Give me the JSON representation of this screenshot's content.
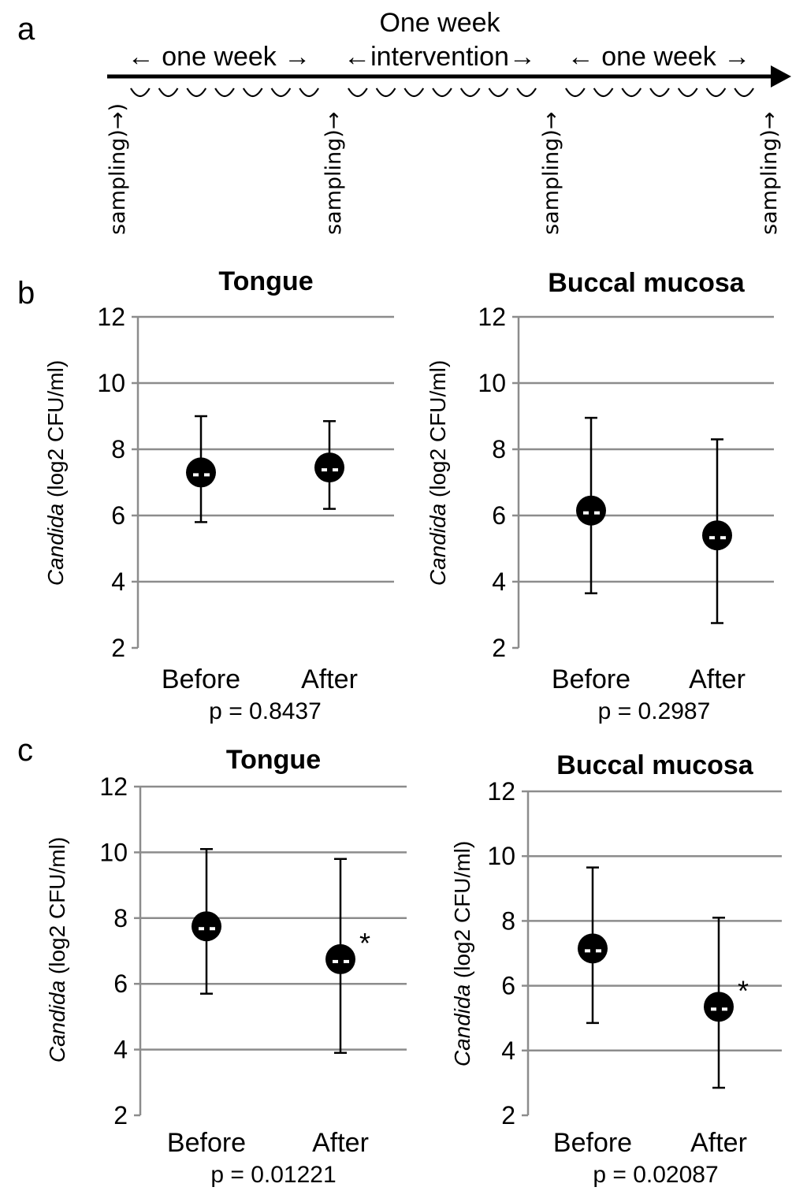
{
  "panels": {
    "a": "a",
    "b": "b",
    "c": "c"
  },
  "timeline": {
    "top_label": "One week",
    "segments": [
      "← one week →",
      "←intervention→",
      "← one week →"
    ],
    "sampling_labels": [
      "sampling)→)",
      "sampling)→",
      "sampling)→",
      "sampling)→"
    ]
  },
  "y_axis_label": {
    "italic": "Candida",
    "rest": " (log2 CFU/ml)"
  },
  "colors": {
    "marker": "#000000",
    "grid": "#8c8c8c",
    "axis": "#8c8c8c"
  },
  "chart_data": [
    {
      "type": "scatter",
      "panel": "b",
      "title": "Tongue",
      "categories": [
        "Before",
        "After"
      ],
      "values": [
        7.3,
        7.45
      ],
      "error_low": [
        5.8,
        6.2
      ],
      "error_high": [
        9.0,
        8.85
      ],
      "ylim": [
        2,
        12
      ],
      "yticks": [
        2,
        4,
        6,
        8,
        10,
        12
      ],
      "ylabel": "Candida (log2 CFU/ml)",
      "pvalue": "p = 0.8437",
      "significance": [
        false,
        false
      ]
    },
    {
      "type": "scatter",
      "panel": "b",
      "title": "Buccal mucosa",
      "categories": [
        "Before",
        "After"
      ],
      "values": [
        6.15,
        5.4
      ],
      "error_low": [
        3.65,
        2.75
      ],
      "error_high": [
        8.95,
        8.3
      ],
      "ylim": [
        2,
        12
      ],
      "yticks": [
        2,
        4,
        6,
        8,
        10,
        12
      ],
      "ylabel": "Candida (log2 CFU/ml)",
      "pvalue": "p = 0.2987",
      "significance": [
        false,
        false
      ]
    },
    {
      "type": "scatter",
      "panel": "c",
      "title": "Tongue",
      "categories": [
        "Before",
        "After"
      ],
      "values": [
        7.75,
        6.75
      ],
      "error_low": [
        5.7,
        3.9
      ],
      "error_high": [
        10.1,
        9.8
      ],
      "ylim": [
        2,
        12
      ],
      "yticks": [
        2,
        4,
        6,
        8,
        10,
        12
      ],
      "ylabel": "Candida (log2 CFU/ml)",
      "pvalue": "p = 0.01221",
      "significance": [
        false,
        true
      ]
    },
    {
      "type": "scatter",
      "panel": "c",
      "title": "Buccal mucosa",
      "categories": [
        "Before",
        "After"
      ],
      "values": [
        7.15,
        5.35
      ],
      "error_low": [
        4.85,
        2.85
      ],
      "error_high": [
        9.65,
        8.1
      ],
      "ylim": [
        2,
        12
      ],
      "yticks": [
        2,
        4,
        6,
        8,
        10,
        12
      ],
      "ylabel": "Candida (log2 CFU/ml)",
      "pvalue": "p = 0.02087",
      "significance": [
        false,
        true
      ]
    }
  ],
  "significance_marker": "*"
}
